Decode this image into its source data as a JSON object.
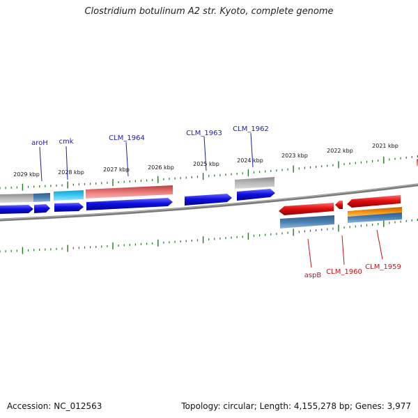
{
  "title": "Clostridium botulinum A2 str. Kyoto, complete genome",
  "footer": {
    "accession": "Accession: NC_012563",
    "summary": "Topology: circular; Length: 4,155,278 bp; Genes: 3,977"
  },
  "colors": {
    "backbone": "#7a7a7a",
    "tick": "#1e7a1e",
    "forward_label": "#1a1aa8",
    "reverse_label": "#cc1111",
    "cds_forward": "#1010e0",
    "cds_reverse": "#e01010",
    "gene_grey": "#a8a8a8",
    "gene_steel": "#4a7fb0",
    "gene_cyan": "#22b8e8",
    "gene_pink": "#e87878",
    "gene_orange": "#f09010"
  },
  "scale_labels": [
    "2029 kbp",
    "2028 kbp",
    "2027 kbp",
    "2026 kbp",
    "2025 kbp",
    "2024 kbp",
    "2023 kbp",
    "2022 kbp",
    "2021 kbp"
  ],
  "forward_genes": [
    "aroH",
    "cmk",
    "CLM_1964",
    "CLM_1963",
    "CLM_1962"
  ],
  "reverse_genes": [
    "aspB",
    "CLM_1960",
    "CLM_1959"
  ]
}
